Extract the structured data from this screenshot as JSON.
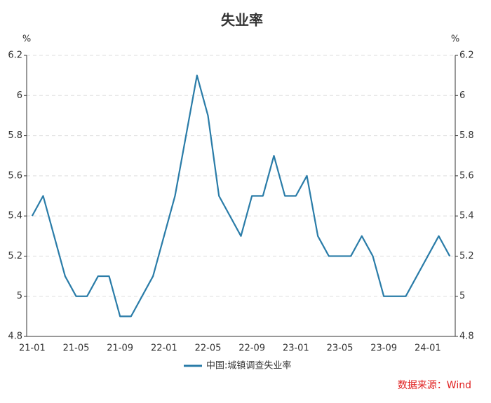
{
  "chart_data": {
    "type": "line",
    "title": "失业率",
    "y_unit": "%",
    "y2_unit": "%",
    "categories": [
      "21-01",
      null,
      null,
      null,
      "21-05",
      null,
      null,
      null,
      "21-09",
      null,
      null,
      null,
      "22-01",
      null,
      null,
      null,
      "22-05",
      null,
      null,
      null,
      "22-09",
      null,
      null,
      null,
      "23-01",
      null,
      null,
      null,
      "23-05",
      null,
      null,
      null,
      "23-09",
      null,
      null,
      null,
      "24-01",
      null,
      null
    ],
    "series": [
      {
        "name": "中国:城镇调查失业率",
        "color": "#2a7ca8",
        "values": [
          5.4,
          5.5,
          5.3,
          5.1,
          5.0,
          5.0,
          5.1,
          5.1,
          4.9,
          4.9,
          5.0,
          5.1,
          5.3,
          5.5,
          5.8,
          6.1,
          5.9,
          5.5,
          5.4,
          5.3,
          5.5,
          5.5,
          5.7,
          5.5,
          5.5,
          5.6,
          5.3,
          5.2,
          5.2,
          5.2,
          5.3,
          5.2,
          5.0,
          5.0,
          5.0,
          5.1,
          5.2,
          5.3,
          5.2
        ]
      }
    ],
    "ylim": [
      4.8,
      6.2
    ],
    "yticks": [
      4.8,
      5,
      5.2,
      5.4,
      5.6,
      5.8,
      6,
      6.2
    ],
    "y2lim": [
      4.8,
      6.2
    ],
    "y2ticks": [
      4.8,
      5,
      5.2,
      5.4,
      5.6,
      5.8,
      6,
      6.2
    ],
    "grid": true,
    "legend": "bottom",
    "source": "数据来源：Wind"
  }
}
